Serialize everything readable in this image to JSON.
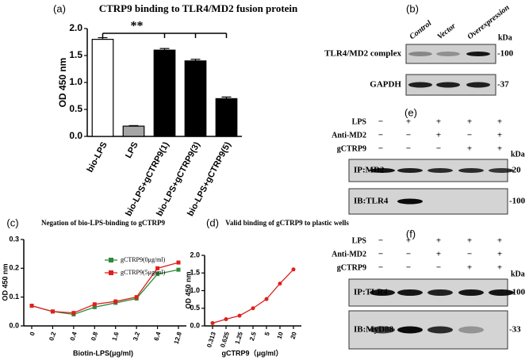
{
  "chart_data": [
    {
      "type": "bar",
      "panel": "(a)",
      "title": "CTRP9 binding to TLR4/MD2 fusion protein",
      "y_label": "OD 450 nm",
      "categories": [
        "bio-LPS",
        "LPS",
        "bio-LPS+gCTRP9(1)",
        "bio-LPS+gCTRP9(3)",
        "bio-LPS+gCTRP9(5)"
      ],
      "values": [
        1.8,
        0.19,
        1.6,
        1.4,
        0.7
      ],
      "errors": [
        0.03,
        0.01,
        0.03,
        0.03,
        0.03
      ],
      "colors": [
        "#ffffff",
        "#a6a6a6",
        "#000000",
        "#000000",
        "#000000"
      ],
      "ylim": [
        0,
        2
      ],
      "yticks": [
        {
          "value": 0,
          "label": "0.0"
        },
        0.5,
        {
          "value": 1,
          "label": "1.0"
        },
        1.5,
        {
          "value": 2,
          "label": "2.0"
        }
      ],
      "annotation": "**"
    },
    {
      "type": "line",
      "panel": "(c)",
      "title": "Negation of bio-LPS-binding to gCTRP9",
      "x_label": "Biotin-LPS(μg/ml)",
      "y_label": "OD 450 nm",
      "categories": [
        "0",
        "0.2",
        "0.4",
        "0.8",
        "1.6",
        "3.2",
        "6.4",
        "12.8"
      ],
      "series": [
        {
          "name": "gCTRP9(0μg/ml)",
          "color": "#2e8b3a",
          "values": [
            0.07,
            0.05,
            0.04,
            0.065,
            0.08,
            0.095,
            0.18,
            0.195
          ]
        },
        {
          "name": "gCTRP9(5μg/ml)",
          "color": "#e0201b",
          "values": [
            0.07,
            0.05,
            0.045,
            0.075,
            0.085,
            0.1,
            0.2,
            0.22
          ]
        }
      ],
      "ylim": [
        0,
        0.3
      ],
      "yticks": [
        {
          "value": 0,
          "label": "0.0"
        },
        0.1,
        0.2,
        0.3
      ]
    },
    {
      "type": "line",
      "panel": "(d)",
      "title": "Valid binding of gCTRP9 to plastic wells",
      "x_label": "gCTRP9（μg/ml）",
      "y_label": "OD 450 nm",
      "categories": [
        "0.313",
        "0.625",
        "1.25",
        "2.5",
        "5",
        "10",
        "20"
      ],
      "series": [
        {
          "color": "#e0201b",
          "values": [
            0.08,
            0.19,
            0.29,
            0.5,
            0.76,
            1.2,
            1.6
          ]
        }
      ],
      "ylim": [
        0,
        2
      ],
      "yticks": [
        {
          "value": 0,
          "label": "0.0"
        },
        0.5,
        {
          "value": 1,
          "label": "1.0"
        },
        1.5,
        {
          "value": 2,
          "label": "2.0"
        }
      ]
    }
  ],
  "blot_panels": [
    {
      "panel": "(b)",
      "lanes": [
        "Control",
        "Vector",
        "Overexpression"
      ],
      "unit": "kDa",
      "rows": [
        {
          "label": "TLR4/MD2 complex",
          "marker": "-100"
        },
        {
          "label": "GAPDH",
          "marker": "-37"
        }
      ]
    },
    {
      "panel": "(e)",
      "unit": "kDa",
      "conditions": [
        {
          "name": "LPS",
          "signs": [
            "−",
            "+",
            "+",
            "+",
            "+"
          ]
        },
        {
          "name": "Anti-MD2",
          "signs": [
            "−",
            "−",
            "+",
            "−",
            "+"
          ]
        },
        {
          "name": "gCTRP9",
          "signs": [
            "−",
            "−",
            "−",
            "+",
            "+"
          ]
        }
      ],
      "rows": [
        {
          "label": "IP:MD2",
          "marker": "-20"
        },
        {
          "label": "IB:TLR4",
          "marker": "-100"
        }
      ]
    },
    {
      "panel": "(f)",
      "unit": "kDa",
      "conditions": [
        {
          "name": "LPS",
          "signs": [
            "−",
            "+",
            "+",
            "+",
            "+"
          ]
        },
        {
          "name": "Anti-MD2",
          "signs": [
            "−",
            "−",
            "+",
            "−",
            "+"
          ]
        },
        {
          "name": "gCTRP9",
          "signs": [
            "−",
            "−",
            "−",
            "+",
            "+"
          ]
        }
      ],
      "rows": [
        {
          "label": "IP:TLR4",
          "marker": "-100"
        },
        {
          "label": "IB:MyD88",
          "marker": "-33"
        }
      ]
    }
  ]
}
